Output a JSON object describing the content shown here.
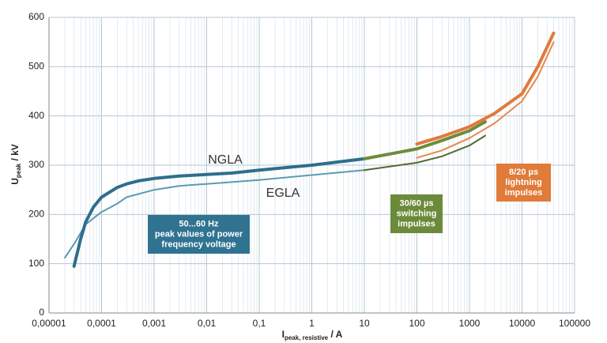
{
  "chart_data": {
    "type": "line",
    "ylabel": "U",
    "ylabel_sub": "peak",
    "ylabel_unit": " / kV",
    "xlabel": "I",
    "xlabel_sub": "peak, resistive",
    "xlabel_unit": " / A",
    "xscale": "log",
    "xlim": [
      1e-05,
      100000
    ],
    "ylim": [
      0,
      600
    ],
    "xticks": [
      {
        "value": 1e-05,
        "label": "0,00001"
      },
      {
        "value": 0.0001,
        "label": "0,0001"
      },
      {
        "value": 0.001,
        "label": "0,001"
      },
      {
        "value": 0.01,
        "label": "0,01"
      },
      {
        "value": 0.1,
        "label": "0,1"
      },
      1,
      10,
      100,
      1000,
      10000,
      100000
    ],
    "yticks": [
      0,
      100,
      200,
      300,
      400,
      500,
      600
    ],
    "grid": true,
    "series": [
      {
        "name": "NGLA",
        "color": "#2e6e8e",
        "width": 4,
        "x": [
          3e-05,
          4e-05,
          5e-05,
          7e-05,
          0.0001,
          0.0002,
          0.0003,
          0.0005,
          0.001,
          0.003,
          0.01,
          0.03,
          0.1,
          1,
          10
        ],
        "values": [
          95,
          150,
          185,
          215,
          235,
          255,
          262,
          268,
          273,
          278,
          281,
          284,
          290,
          300,
          313
        ]
      },
      {
        "name": "EGLA",
        "color": "#5b9bb2",
        "width": 2,
        "x": [
          2e-05,
          3e-05,
          5e-05,
          0.0001,
          0.0002,
          0.0003,
          0.001,
          0.003,
          0.01,
          0.1,
          1,
          10
        ],
        "values": [
          112,
          140,
          180,
          205,
          222,
          235,
          250,
          258,
          262,
          270,
          280,
          290
        ]
      },
      {
        "color": "#6e8c3c",
        "width": 4,
        "x": [
          10,
          100,
          300,
          1000,
          2000
        ],
        "values": [
          313,
          333,
          350,
          370,
          388
        ]
      },
      {
        "color": "#55692e",
        "width": 2,
        "x": [
          10,
          100,
          300,
          1000,
          2000
        ],
        "values": [
          290,
          305,
          318,
          340,
          360
        ]
      },
      {
        "color": "#e07a3a",
        "width": 4,
        "x": [
          100,
          300,
          1000,
          3000,
          10000,
          20000,
          40000
        ],
        "values": [
          343,
          358,
          378,
          405,
          445,
          500,
          568
        ]
      },
      {
        "color": "#e8884c",
        "width": 2,
        "x": [
          100,
          300,
          1000,
          3000,
          10000,
          20000,
          40000
        ],
        "values": [
          315,
          330,
          355,
          385,
          430,
          480,
          550
        ]
      }
    ],
    "boxes": [
      {
        "lines": [
          "50...60 Hz",
          "peak values of power",
          "frequency voltage"
        ],
        "color": "#2f7391"
      },
      {
        "lines": [
          "30/60 µs",
          "switching",
          "impulses"
        ],
        "color": "#6b8a3a"
      },
      {
        "lines": [
          "8/20 µs",
          "lightning",
          "impulses"
        ],
        "color": "#e07b39"
      }
    ]
  }
}
